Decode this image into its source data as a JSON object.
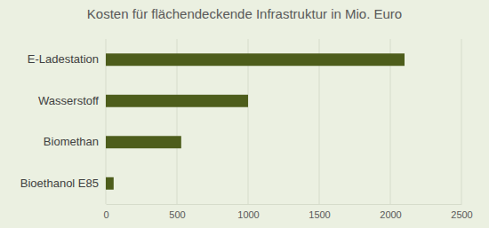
{
  "chart_data": {
    "type": "bar",
    "title": "Kosten für flächendeckende Infrastruktur in Mio. Euro",
    "orientation": "horizontal",
    "categories": [
      "E-Ladestation",
      "Wasserstoff",
      "Biomethan",
      "Bioethanol E85"
    ],
    "values": [
      2100,
      1000,
      530,
      55
    ],
    "color": "#4d5d1b",
    "xlim": [
      0,
      2500
    ],
    "xticks": [
      0,
      500,
      1000,
      1500,
      2000,
      2500
    ],
    "grid": true
  }
}
